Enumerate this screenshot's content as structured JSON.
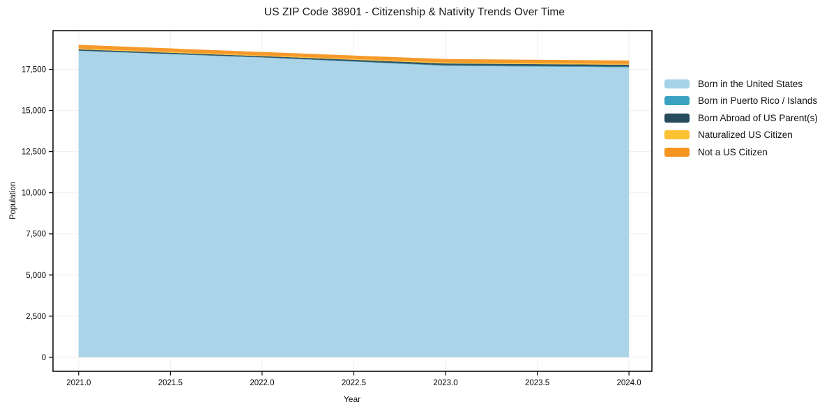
{
  "title": "US ZIP Code 38901 - Citizenship & Nativity Trends Over Time",
  "axes": {
    "x_title": "Year",
    "y_title": "Population"
  },
  "chart_data": {
    "type": "area",
    "stacked": true,
    "title": "US ZIP Code 38901 - Citizenship & Nativity Trends Over Time",
    "xlabel": "Year",
    "ylabel": "Population",
    "x": [
      2021,
      2022,
      2023,
      2024
    ],
    "series": [
      {
        "name": "Born in the United States",
        "color": "#a6d2e7",
        "values": [
          18620,
          18210,
          17710,
          17620
        ]
      },
      {
        "name": "Born in Puerto Rico / Islands",
        "color": "#3aa1c1",
        "values": [
          15,
          20,
          30,
          40
        ]
      },
      {
        "name": "Born Abroad of US Parent(s)",
        "color": "#274b5d",
        "values": [
          75,
          70,
          115,
          120
        ]
      },
      {
        "name": "Naturalized US Citizen",
        "color": "#fcc232",
        "values": [
          55,
          45,
          55,
          50
        ]
      },
      {
        "name": "Not a US Citizen",
        "color": "#f69420",
        "values": [
          225,
          210,
          215,
          205
        ]
      }
    ],
    "x_tick_values": [
      2021.0,
      2021.5,
      2022.0,
      2022.5,
      2023.0,
      2023.5,
      2024.0
    ],
    "x_tick_labels": [
      "2021.0",
      "2021.5",
      "2022.0",
      "2022.5",
      "2023.0",
      "2023.5",
      "2024.0"
    ],
    "y_tick_values": [
      0,
      2500,
      5000,
      7500,
      10000,
      12500,
      15000,
      17500
    ],
    "y_tick_labels": [
      "0",
      "2,500",
      "5,000",
      "7,500",
      "10,000",
      "12,500",
      "15,000",
      "17,500"
    ],
    "xlim": [
      2020.86,
      2024.125
    ],
    "ylim": [
      -850,
      19850
    ],
    "grid": true,
    "legend_position": "right"
  },
  "style_colors": {
    "frame": "#000000",
    "grid": "#efefef",
    "tick_text": "#000000"
  }
}
